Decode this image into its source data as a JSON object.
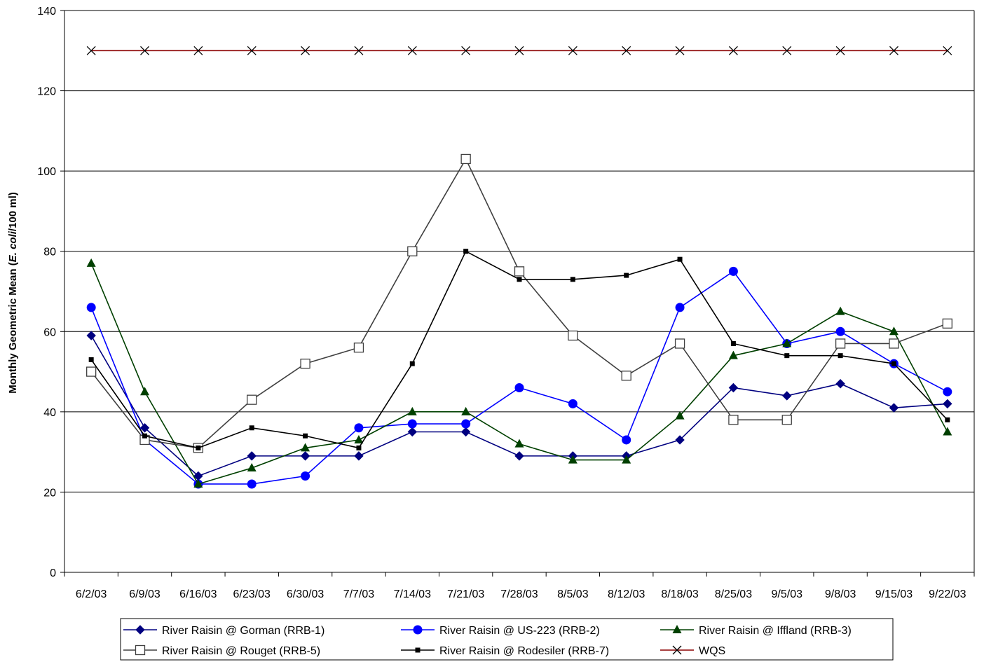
{
  "chart_data": {
    "type": "line",
    "title": "",
    "xlabel": "",
    "ylabel": {
      "prefix": "Monthly Geometric Mean (",
      "italic": "E. coli",
      "suffix": "/100 ml)"
    },
    "ylim": [
      0,
      140
    ],
    "yticks": [
      "0",
      "20",
      "40",
      "60",
      "80",
      "100",
      "120",
      "140"
    ],
    "grid": true,
    "legend_position": "bottom",
    "categories": [
      "6/2/03",
      "6/9/03",
      "6/16/03",
      "6/23/03",
      "6/30/03",
      "7/7/03",
      "7/14/03",
      "7/21/03",
      "7/28/03",
      "8/5/03",
      "8/12/03",
      "8/18/03",
      "8/25/03",
      "9/5/03",
      "9/8/03",
      "9/15/03",
      "9/22/03"
    ],
    "series": [
      {
        "name": "River Raisin @ Gorman (RRB-1)",
        "color": "#000080",
        "marker": "diamond",
        "values": [
          59,
          36,
          24,
          29,
          29,
          29,
          35,
          35,
          29,
          29,
          29,
          33,
          46,
          44,
          47,
          41,
          42
        ]
      },
      {
        "name": "River Raisin @ US-223 (RRB-2)",
        "color": "#0000ff",
        "marker": "circle",
        "values": [
          66,
          33,
          22,
          22,
          24,
          36,
          37,
          37,
          46,
          42,
          33,
          66,
          75,
          57,
          60,
          52,
          45
        ]
      },
      {
        "name": "River Raisin @ Iffland (RRB-3)",
        "color": "#004000",
        "marker": "triangle",
        "values": [
          77,
          45,
          22,
          26,
          31,
          33,
          40,
          40,
          32,
          28,
          28,
          39,
          54,
          57,
          65,
          60,
          35
        ]
      },
      {
        "name": "River Raisin @ Rouget (RRB-5)",
        "color": "#404040",
        "marker": "open-square",
        "values": [
          50,
          33,
          31,
          43,
          52,
          56,
          80,
          103,
          75,
          59,
          49,
          57,
          38,
          38,
          57,
          57,
          62
        ]
      },
      {
        "name": "River Raisin @ Rodesiler (RRB-7)",
        "color": "#000000",
        "marker": "small-square",
        "values": [
          53,
          34,
          31,
          36,
          34,
          31,
          52,
          80,
          73,
          73,
          74,
          78,
          57,
          54,
          54,
          52,
          38
        ]
      },
      {
        "name": "WQS",
        "color": "#8b0000",
        "marker": "x",
        "marker_color": "#000000",
        "values": [
          130,
          130,
          130,
          130,
          130,
          130,
          130,
          130,
          130,
          130,
          130,
          130,
          130,
          130,
          130,
          130,
          130
        ]
      }
    ]
  }
}
